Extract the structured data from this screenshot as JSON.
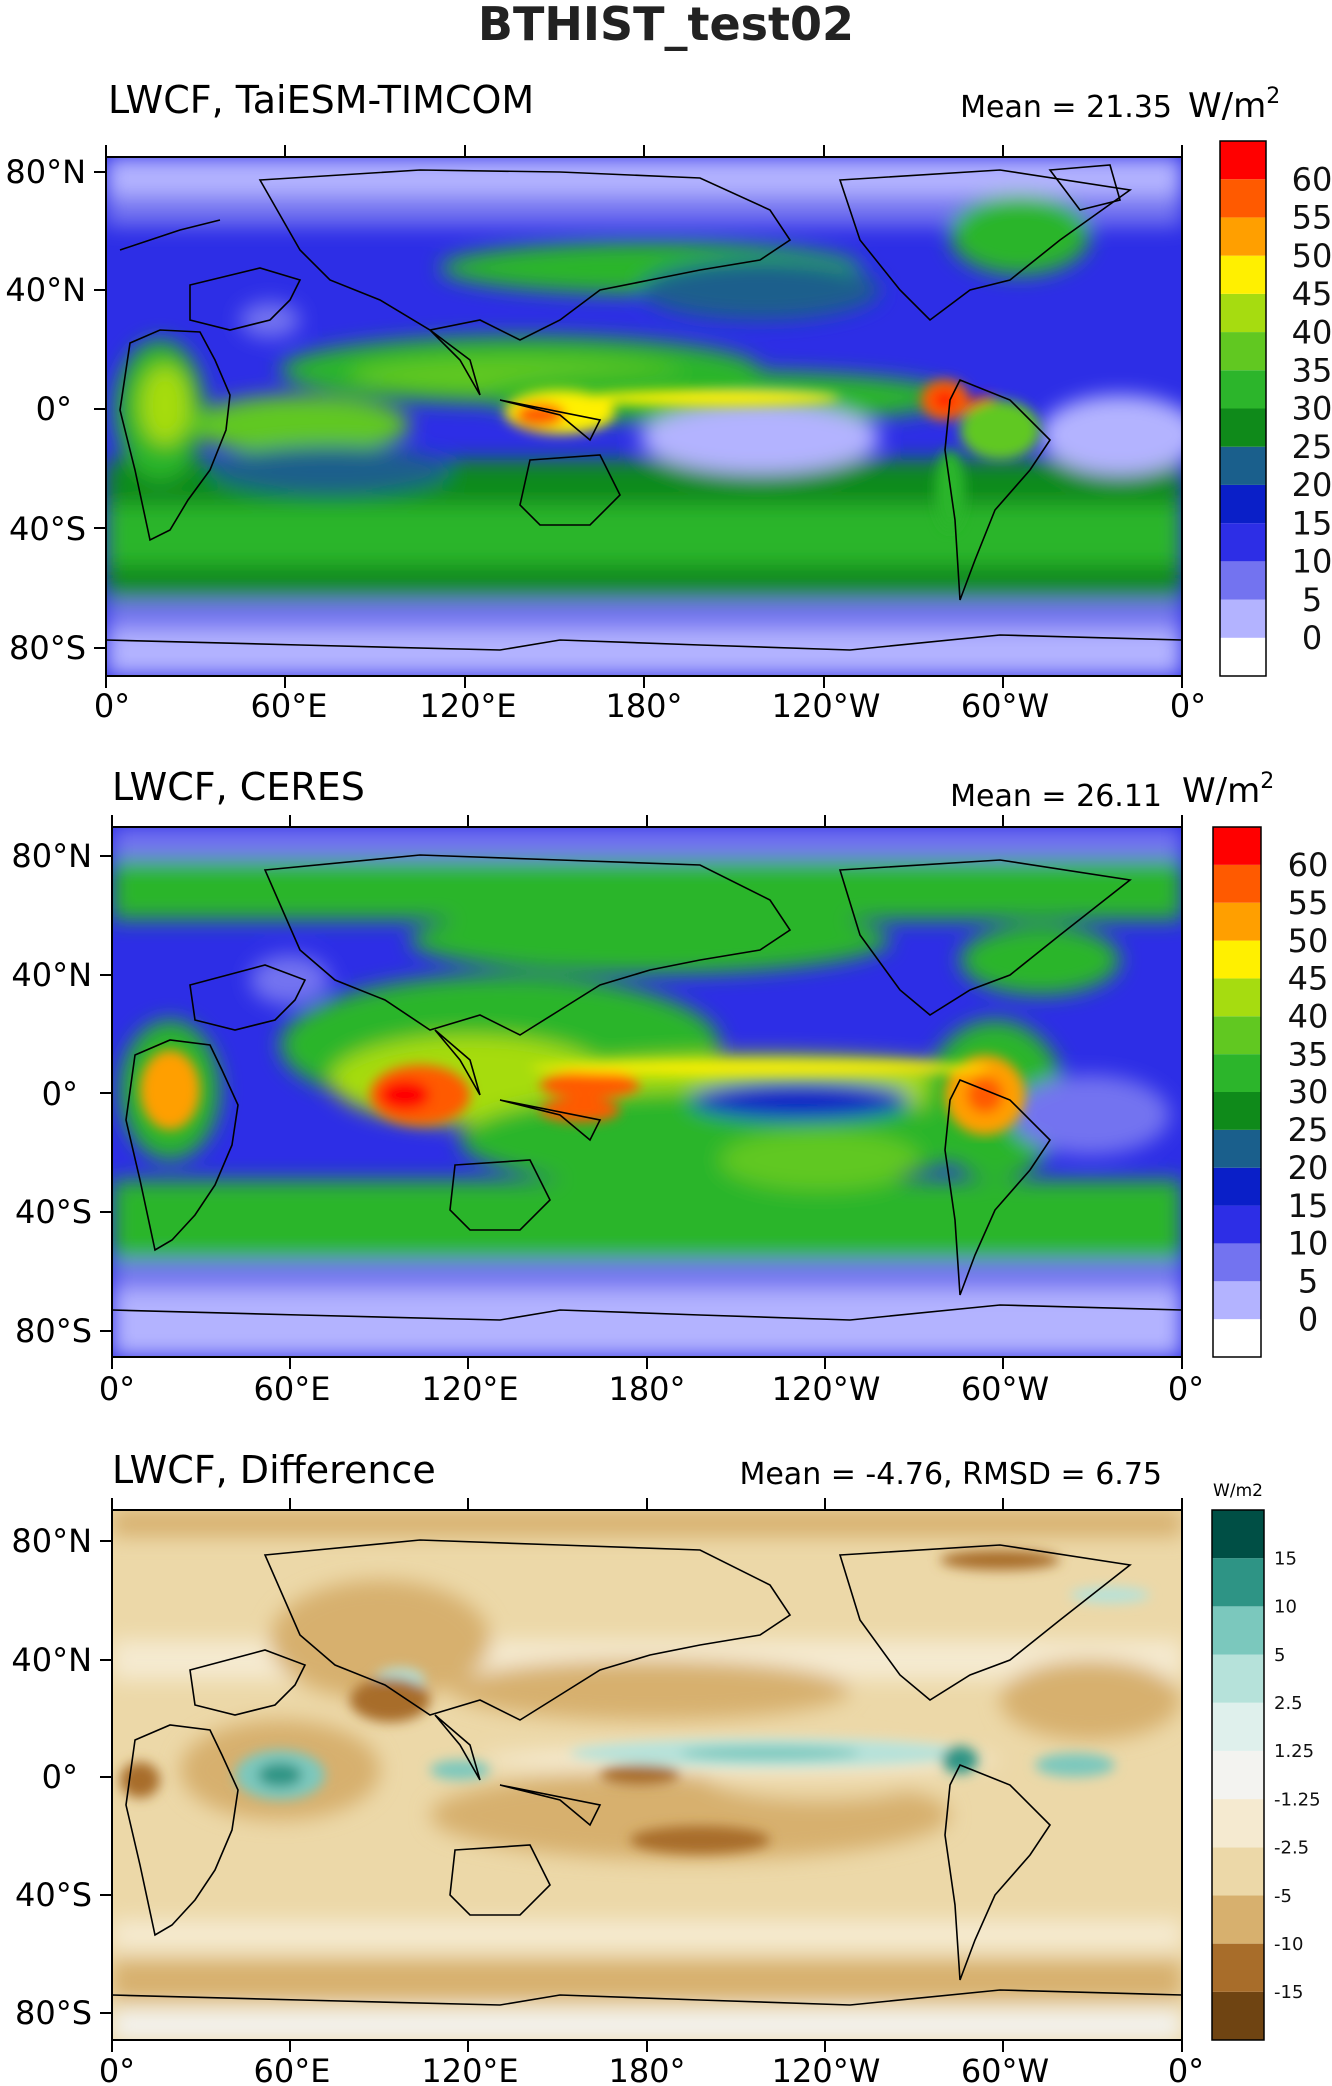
{
  "title": "BTHIST_test02",
  "chart_data": [
    {
      "type": "heatmap",
      "title": "LWCF, TaiESM-TIMCOM",
      "stat": "Mean = 21.35",
      "units": "W/m",
      "units_sup": "2",
      "x_ticks": [
        "0°",
        "60°E",
        "120°E",
        "180°",
        "120°W",
        "60°W",
        "0°"
      ],
      "y_ticks": [
        "80°N",
        "40°N",
        "0°",
        "40°S",
        "80°S"
      ],
      "colorbar_labels": [
        "0",
        "5",
        "10",
        "15",
        "20",
        "25",
        "30",
        "35",
        "40",
        "45",
        "50",
        "55",
        "60"
      ],
      "colorbar_colors": [
        "#ffffff",
        "#b3b3ff",
        "#7373f0",
        "#2d2ee6",
        "#0a1fc8",
        "#1a5f8c",
        "#0f8a1a",
        "#2cb52b",
        "#61c821",
        "#a6dc10",
        "#fff000",
        "#ff9f00",
        "#ff5a00",
        "#ff0000"
      ]
    },
    {
      "type": "heatmap",
      "title": "LWCF, CERES",
      "stat": "Mean = 26.11",
      "units": "W/m",
      "units_sup": "2",
      "x_ticks": [
        "0°",
        "60°E",
        "120°E",
        "180°",
        "120°W",
        "60°W",
        "0°"
      ],
      "y_ticks": [
        "80°N",
        "40°N",
        "0°",
        "40°S",
        "80°S"
      ],
      "colorbar_labels": [
        "0",
        "5",
        "10",
        "15",
        "20",
        "25",
        "30",
        "35",
        "40",
        "45",
        "50",
        "55",
        "60"
      ],
      "colorbar_colors": [
        "#ffffff",
        "#b3b3ff",
        "#7373f0",
        "#2d2ee6",
        "#0a1fc8",
        "#1a5f8c",
        "#0f8a1a",
        "#2cb52b",
        "#61c821",
        "#a6dc10",
        "#fff000",
        "#ff9f00",
        "#ff5a00",
        "#ff0000"
      ]
    },
    {
      "type": "heatmap",
      "title": "LWCF, Difference",
      "stat": "Mean = -4.76, RMSD = 6.75",
      "units": "W/m2",
      "x_ticks": [
        "0°",
        "60°E",
        "120°E",
        "180°",
        "120°W",
        "60°W",
        "0°"
      ],
      "y_ticks": [
        "80°N",
        "40°N",
        "0°",
        "40°S",
        "80°S"
      ],
      "colorbar_labels": [
        "-15",
        "-10",
        "-5",
        "-2.5",
        "-1.25",
        "1.25",
        "2.5",
        "5",
        "10",
        "15"
      ],
      "colorbar_colors": [
        "#6f4412",
        "#a86d2a",
        "#d7b06e",
        "#ecd8a8",
        "#f5ead0",
        "#f3f3f0",
        "#dff0ec",
        "#b6e2da",
        "#7bc8bd",
        "#2e9485",
        "#004f45"
      ]
    }
  ]
}
